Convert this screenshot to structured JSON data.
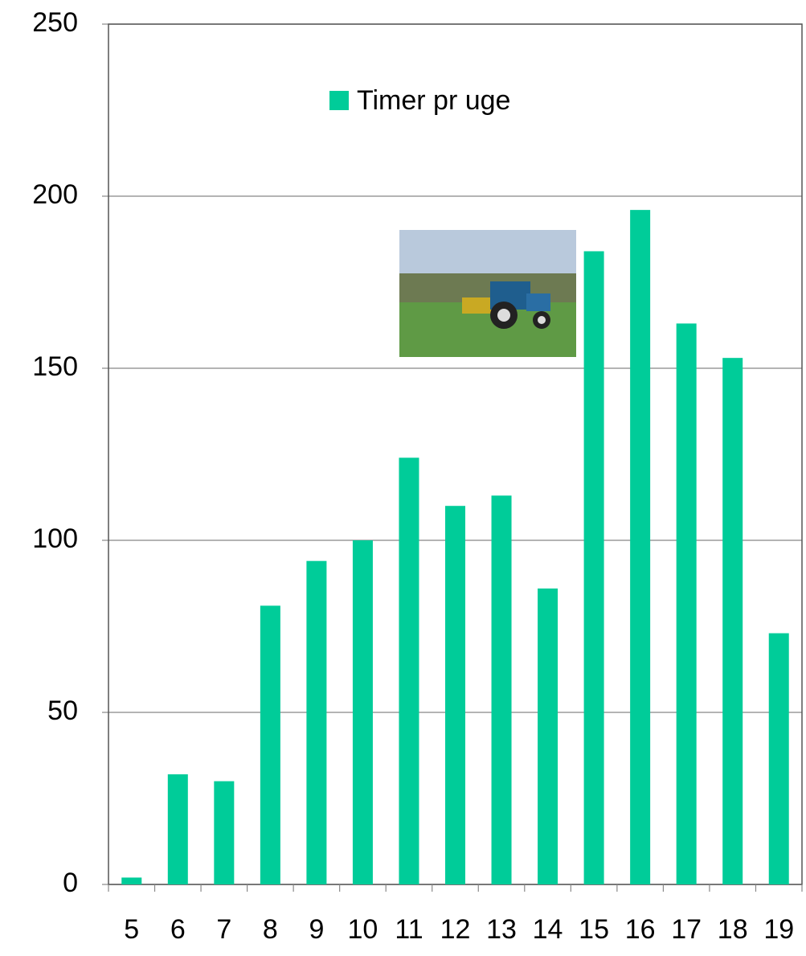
{
  "chart_data": {
    "type": "bar",
    "categories": [
      "5",
      "6",
      "7",
      "8",
      "9",
      "10",
      "11",
      "12",
      "13",
      "14",
      "15",
      "16",
      "17",
      "18",
      "19"
    ],
    "series": [
      {
        "name": "Timer pr uge",
        "color": "#00cc99",
        "values": [
          2,
          32,
          30,
          81,
          94,
          100,
          124,
          110,
          113,
          86,
          184,
          196,
          163,
          153,
          73
        ]
      }
    ],
    "ylim": [
      0,
      250
    ],
    "yticks": [
      0,
      50,
      100,
      150,
      200,
      250
    ],
    "grid": true
  }
}
